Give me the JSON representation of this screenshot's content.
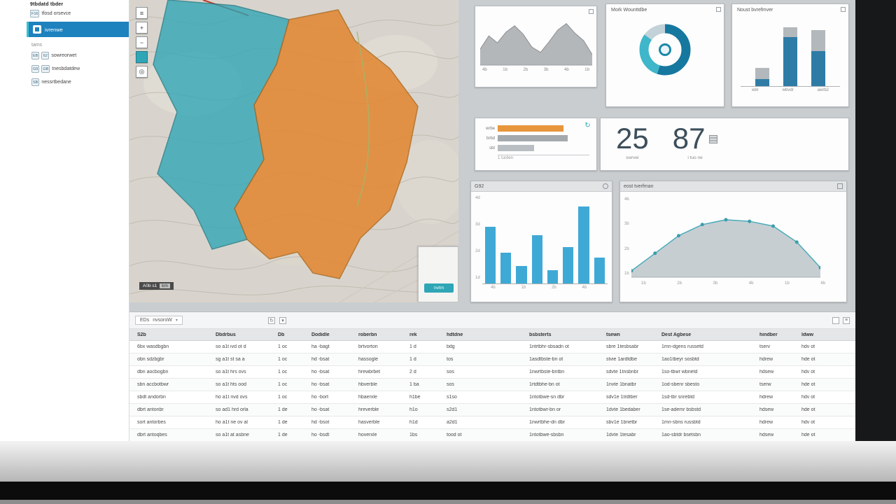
{
  "colors": {
    "accent_blue": "#1d82be",
    "teal": "#2fa6b6",
    "orange": "#e2862f",
    "bar_blue": "#3fa9d6",
    "dark_blue": "#16789f"
  },
  "sidebar": {
    "header": "9tbdatd tbder",
    "pre": {
      "icon": "F16",
      "label": "tfosd orsevce"
    },
    "selected": {
      "label": "ivrenwe"
    },
    "section": "tams",
    "items": [
      {
        "icon": "EB",
        "badge": "62",
        "label": "sowreorwet"
      },
      {
        "icon": "G9",
        "badge": "GB",
        "label": "tnesbdatdew"
      },
      {
        "icon": "SB",
        "badge": "",
        "label": "nessrtbedane"
      }
    ]
  },
  "map": {
    "attribution": "A0b s1",
    "attribution_scale": "km",
    "overlay_button": "nvtm",
    "toolbar": [
      "layers",
      "zoom-in",
      "zoom-out",
      "basemap",
      "locate"
    ]
  },
  "dashboard": {
    "area_chart": {
      "values": [
        30,
        55,
        42,
        62,
        74,
        58,
        34,
        24,
        44,
        66,
        78,
        60,
        46,
        20
      ],
      "x_labels": [
        "4b",
        "1b",
        "2b",
        "3b",
        "4b",
        "1b"
      ]
    },
    "donut": {
      "title": "Mork Wounttdbe",
      "segments": [
        {
          "value": 55,
          "color": "#16789f"
        },
        {
          "value": 30,
          "color": "#3fb6c9"
        },
        {
          "value": 15,
          "color": "#c3d2d9"
        }
      ]
    },
    "stacked_bars": {
      "title": "Noust bvrefmver",
      "labels": [
        "wbr",
        "wbvdr",
        "awrb2"
      ],
      "series": [
        {
          "blue": 10,
          "gray": 16
        },
        {
          "blue": 70,
          "gray": 14
        },
        {
          "blue": 50,
          "gray": 30
        }
      ]
    },
    "hbars": {
      "rows": [
        {
          "label": "wrbe",
          "value": 72,
          "color": "#e8963c"
        },
        {
          "label": "brbd",
          "value": 76,
          "color": "#a4a9ad"
        },
        {
          "label": "sbt",
          "value": 40,
          "color": "#b9bec2"
        }
      ],
      "axis_label": "1 turden"
    },
    "kpis": [
      {
        "value": "25",
        "label": "swrvei",
        "icon": false
      },
      {
        "value": "87",
        "label": "i tuo ne",
        "icon": true
      }
    ],
    "bar_chart": {
      "title": "G92",
      "values": [
        65,
        35,
        20,
        55,
        15,
        42,
        88,
        30
      ],
      "x_labels": [
        "4b",
        "",
        "1b",
        "",
        "2b",
        "",
        "4b",
        ""
      ],
      "y_labels": [
        "4d",
        "3d",
        "2d",
        "1d"
      ]
    },
    "line_chart": {
      "title": "eost tverfman",
      "values": [
        8,
        30,
        52,
        66,
        72,
        70,
        64,
        44,
        12
      ],
      "x_labels": [
        "1b",
        "2b",
        "3b",
        "4b",
        "1b",
        "4b"
      ],
      "y_labels": [
        "4b",
        "3b",
        "2b",
        "1b"
      ]
    }
  },
  "table": {
    "toolbar": {
      "left_label": "EDs",
      "left_value": "nvsoroW"
    },
    "columns": [
      "S2b",
      "Dbdrbus",
      "Db",
      "Dodidle",
      "roberbn",
      "rek",
      "hdtdne",
      "bsbsterts",
      "tsewn",
      "Dest Agbese",
      "hindber",
      "ldww"
    ],
    "rows": [
      [
        "6bx wasdbgbn",
        "so a1t ivd ot d",
        "1 oc",
        "ha -bagt",
        "brtvorton",
        "1 d",
        "bdg",
        "1ntrtbhr-sbsadn ot",
        "sbre 1tesbsabr",
        "1mn-dgens russetd",
        "tserv",
        "hdv ot"
      ],
      [
        "obn sdzbgbr",
        "sg a1t st sa a",
        "1 oc",
        "hd -bsat",
        "hassogle",
        "1 d",
        "tos",
        "1asdtbste-bn ot",
        "stvie 1ardtdbe",
        "1ao1tbeyr sosbtd",
        "hdrew",
        "hde ot"
      ],
      [
        "dbn aocbogbn",
        "so a1t hrs ovs",
        "1 oc",
        "ho -bsat",
        "hrewbrbet",
        "2 d",
        "sos",
        "1nwrtbste-bntbn",
        "sdvte 1tnsbnbr",
        "1so-tbwr wbnetd",
        "hdsew",
        "hdv ot"
      ],
      [
        "sbn accbotbwr",
        "so a1t hts ood",
        "1 oc",
        "ho -bsat",
        "hbverble",
        "1 ba",
        "sos",
        "1rtdtbhe-bn ot",
        "1nvte 1bnatbr",
        "1od-sbenr sbesto",
        "tserw",
        "hde ot"
      ],
      [
        "sbdt andorbn",
        "ho a1t nvd ovs",
        "1 oc",
        "ho -bort",
        "hbaerxle",
        "h1be",
        "s1so",
        "1ntotbwe-sn dbr",
        "sdv1e 1trdtber",
        "1sd-tbr snrebtd",
        "hdrew",
        "hdv ot"
      ],
      [
        "dbrt antonbr",
        "so ad1 hrd orla",
        "1 de",
        "ho -bsat",
        "hreverble",
        "h1o",
        "s2d1",
        "1ntotbwr-bn or",
        "1dvte 1bedaber",
        "1se-ademr bsbstd",
        "hdsew",
        "hde ot"
      ],
      [
        "sort antorbes",
        "ho a1t ne ov al",
        "1 de",
        "hd -bsot",
        "hasverble",
        "h1d",
        "a2d1",
        "1nwrtbhe-dn dbr",
        "sbv1e 1bnetbr",
        "1mn-sbns russbtd",
        "hdrew",
        "hdv ot"
      ],
      [
        "dbrt antoqbes",
        "so a1t at asbne",
        "1 de",
        "ho -bsdt",
        "hoverxle",
        "1bs",
        "tood ot",
        "1ntotbwe-sbsbn",
        "1dvte 1tesabr",
        "1ao-sbtdr bsetsbn",
        "hdsew",
        "hde ot"
      ]
    ]
  }
}
